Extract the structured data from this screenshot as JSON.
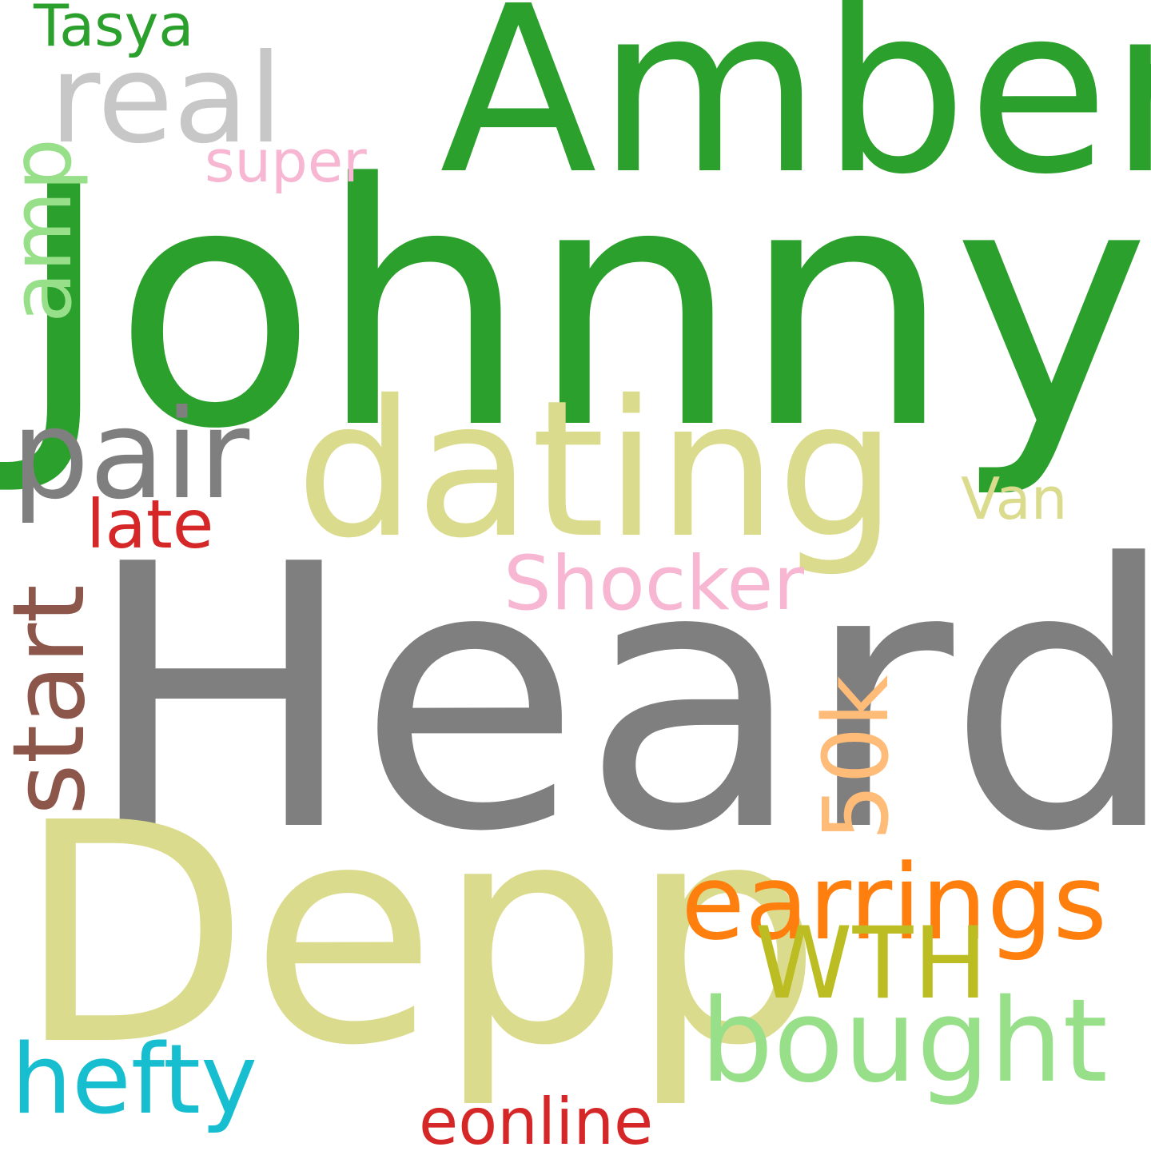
{
  "words": [
    {
      "text": "Johnny",
      "color": "#2ca02c"
    },
    {
      "text": "Heard",
      "color": "#7f7f7f"
    },
    {
      "text": "Depp",
      "color": "#dbdb8d"
    },
    {
      "text": "Amber",
      "color": "#2ca02c"
    },
    {
      "text": "dating",
      "color": "#dbdb8d"
    },
    {
      "text": "pair",
      "color": "#7f7f7f"
    },
    {
      "text": "real",
      "color": "#c7c7c7"
    },
    {
      "text": "earrings",
      "color": "#ff7f0e"
    },
    {
      "text": "bought",
      "color": "#98df8a"
    },
    {
      "text": "hefty",
      "color": "#17becf"
    },
    {
      "text": "WTH",
      "color": "#bcbd22"
    },
    {
      "text": "Shocker",
      "color": "#f7b6d2"
    },
    {
      "text": "late",
      "color": "#d62728"
    },
    {
      "text": "eonline",
      "color": "#d62728"
    },
    {
      "text": "Van",
      "color": "#dbdb8d"
    },
    {
      "text": "super",
      "color": "#f7b6d2"
    },
    {
      "text": "Tasya",
      "color": "#2ca02c"
    },
    {
      "text": "amp",
      "color": "#98df8a"
    },
    {
      "text": "start",
      "color": "#8c564b"
    },
    {
      "text": "50k",
      "color": "#ffbb78"
    }
  ]
}
